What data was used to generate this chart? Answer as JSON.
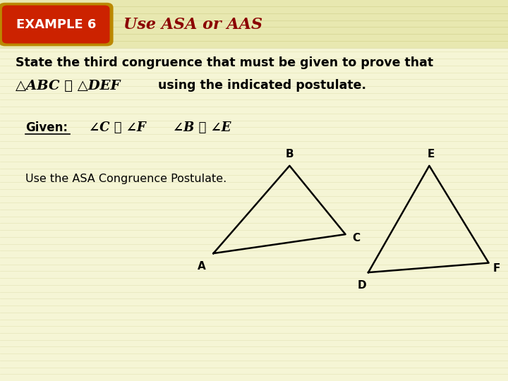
{
  "bg_color": "#f5f5d5",
  "header_stripe_color": "#e8e8b0",
  "example_label": "EXAMPLE 6",
  "example_label_bg": "#cc2200",
  "example_label_color": "#ffffff",
  "title_text": "Use ASA or AAS",
  "title_color": "#8b0000",
  "line1": "State the third congruence that must be given to prove that",
  "line2_math": "△ABC ≅ △DEF",
  "line2_rest": "  using the indicated postulate.",
  "given_label": "Given:",
  "given_eq1": "∠C ≅ ∠F",
  "given_eq2": "∠B ≅ ∠E",
  "postulate_text": "Use the ASA Congruence Postulate.",
  "tri1": {
    "A": [
      0.42,
      0.335
    ],
    "B": [
      0.57,
      0.565
    ],
    "C": [
      0.68,
      0.385
    ],
    "labels": {
      "A": [
        0.405,
        0.315
      ],
      "B": [
        0.57,
        0.582
      ],
      "C": [
        0.694,
        0.375
      ]
    }
  },
  "tri2": {
    "D": [
      0.725,
      0.285
    ],
    "E": [
      0.845,
      0.565
    ],
    "F": [
      0.962,
      0.31
    ],
    "labels": {
      "D": [
        0.712,
        0.265
      ],
      "E": [
        0.848,
        0.582
      ],
      "F": [
        0.97,
        0.295
      ]
    }
  },
  "text_color": "#000000",
  "triangle_color": "#000000"
}
